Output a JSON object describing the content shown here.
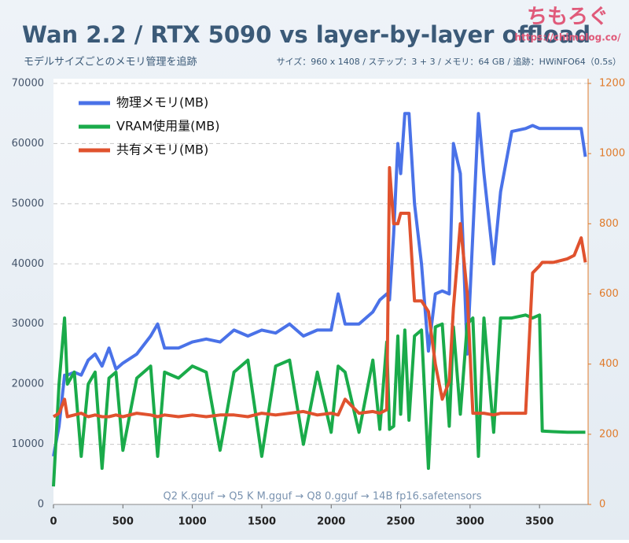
{
  "chart_data": {
    "type": "line",
    "title": "Wan 2.2 / RTX 5090 vs layer-by-layer offload",
    "subtitle": "モデルサイズごとのメモリ管理を追跡",
    "info": "サイズ：960 x 1408 / ステップ：3 + 3 / メモリ：64 GB / 追跡：HWiNFO64（0.5s）",
    "logo": "ちもろぐ",
    "logo_url": "https://chimolog.co/",
    "annotation": "Q2 K.gguf → Q5 K M.gguf → Q8 0.gguf → 14B fp16.safetensors",
    "x": [
      0,
      40,
      80,
      100,
      150,
      200,
      250,
      300,
      350,
      400,
      450,
      500,
      600,
      700,
      750,
      800,
      900,
      1000,
      1100,
      1200,
      1300,
      1400,
      1500,
      1600,
      1700,
      1800,
      1900,
      2000,
      2050,
      2100,
      2200,
      2300,
      2350,
      2400,
      2420,
      2450,
      2480,
      2500,
      2530,
      2560,
      2600,
      2650,
      2700,
      2750,
      2800,
      2850,
      2880,
      2930,
      2980,
      3020,
      3060,
      3100,
      3170,
      3220,
      3300,
      3400,
      3450,
      3500,
      3520,
      3600,
      3700,
      3750,
      3800,
      3830
    ],
    "series": [
      {
        "name": "物理メモリ(MB)",
        "color": "#4a72e8",
        "axis": "y",
        "values": [
          8000,
          13000,
          21500,
          21500,
          22000,
          21500,
          24000,
          25000,
          23000,
          26000,
          22500,
          23500,
          25000,
          28000,
          30000,
          26000,
          26000,
          27000,
          27500,
          27000,
          29000,
          28000,
          29000,
          28500,
          30000,
          28000,
          29000,
          29000,
          35000,
          30000,
          30000,
          32000,
          34000,
          35000,
          34000,
          45000,
          60000,
          55000,
          65000,
          65000,
          50000,
          40000,
          25500,
          35000,
          35500,
          35000,
          60000,
          55000,
          25000,
          45000,
          65000,
          55000,
          40000,
          52000,
          62000,
          62500,
          63000,
          62500,
          62500,
          62500,
          62500,
          62500,
          62500,
          57800
        ]
      },
      {
        "name": "VRAM使用量(MB)",
        "color": "#1aab4a",
        "axis": "y",
        "values": [
          3000,
          20000,
          31000,
          20000,
          22000,
          8000,
          20000,
          22000,
          6000,
          21000,
          22000,
          9000,
          21000,
          23000,
          8000,
          22000,
          21000,
          23000,
          22000,
          9000,
          22000,
          24000,
          8000,
          23000,
          24000,
          10000,
          22000,
          12000,
          23000,
          22000,
          12000,
          24000,
          12500,
          27000,
          12500,
          13000,
          28000,
          15000,
          29000,
          14000,
          28000,
          29000,
          6000,
          29500,
          30000,
          13000,
          29500,
          15000,
          30000,
          31000,
          8000,
          31000,
          12000,
          31000,
          31000,
          31500,
          31000,
          31500,
          12200,
          12100,
          12000,
          12000,
          12000,
          12000
        ]
      },
      {
        "name": "共有メモリ(MB)",
        "color": "#e0522e",
        "axis": "y2",
        "values": [
          250,
          260,
          300,
          250,
          255,
          260,
          250,
          255,
          250,
          250,
          255,
          250,
          260,
          255,
          250,
          255,
          250,
          255,
          250,
          255,
          255,
          250,
          260,
          255,
          260,
          265,
          255,
          260,
          255,
          300,
          260,
          265,
          260,
          270,
          960,
          800,
          800,
          830,
          830,
          830,
          580,
          580,
          550,
          400,
          300,
          350,
          560,
          800,
          600,
          260,
          260,
          260,
          255,
          260,
          260,
          260,
          660,
          680,
          690,
          690,
          700,
          710,
          760,
          690
        ]
      }
    ],
    "xlim": [
      0,
      3850
    ],
    "xticks": [
      0,
      500,
      1000,
      1500,
      2000,
      2500,
      3000,
      3500
    ],
    "ylim": [
      0,
      70000
    ],
    "yticks": [
      0,
      10000,
      20000,
      30000,
      40000,
      50000,
      60000,
      70000
    ],
    "y2lim": [
      0,
      1200
    ],
    "y2ticks": [
      0,
      200,
      400,
      600,
      800,
      1000,
      1200
    ],
    "grid": true,
    "legend": "upper left"
  }
}
